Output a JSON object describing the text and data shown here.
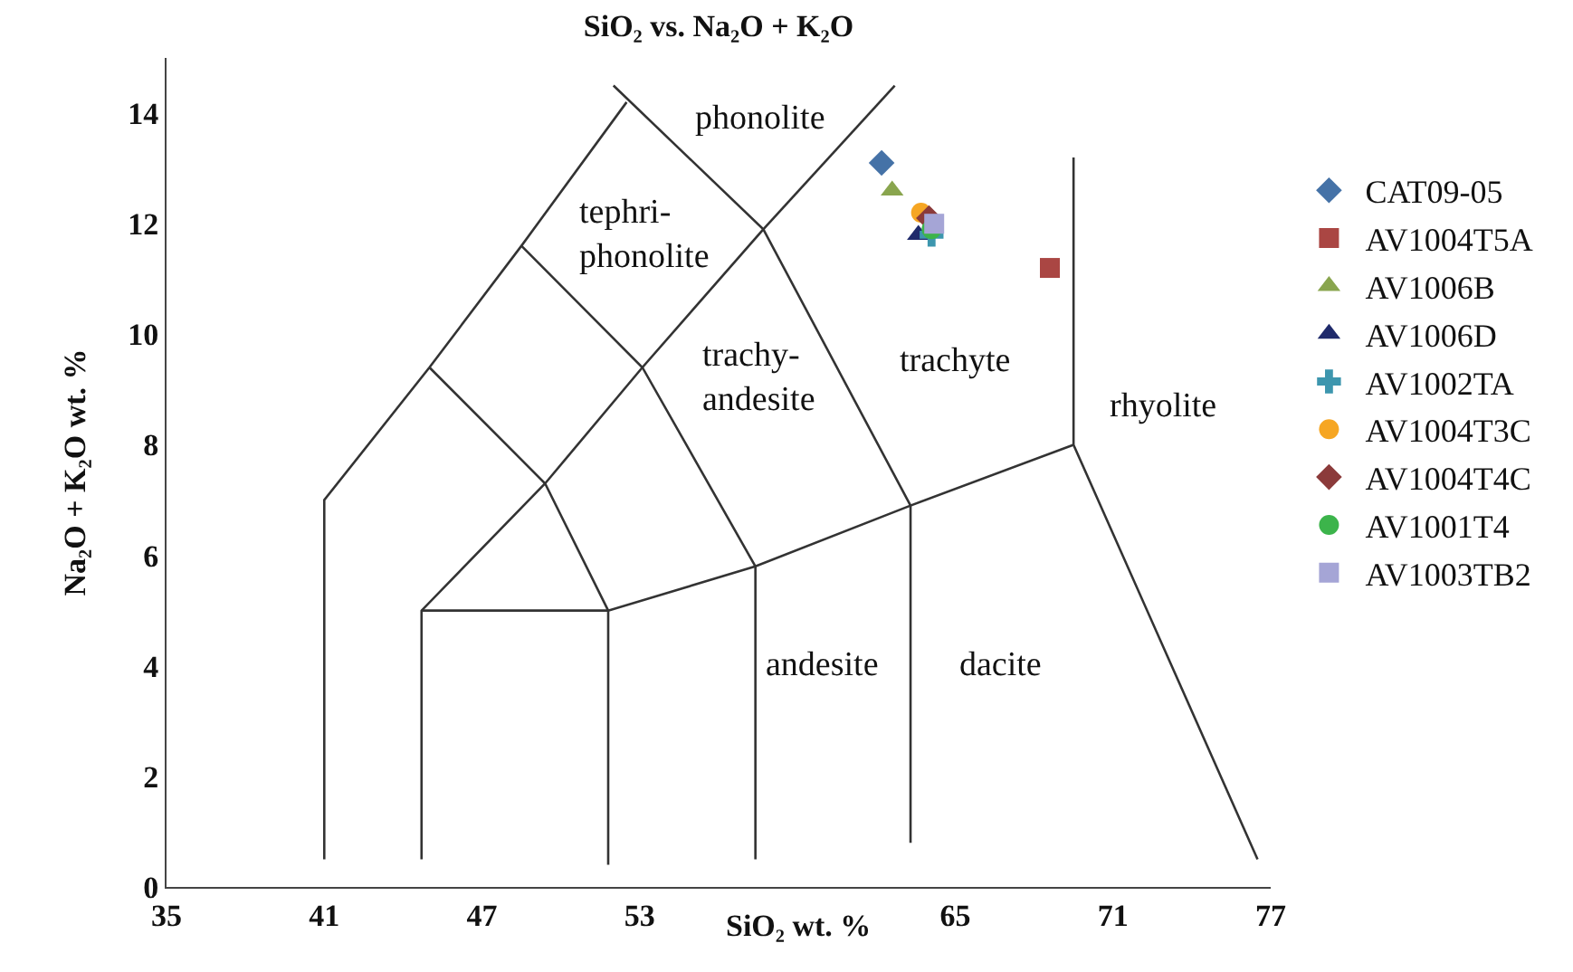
{
  "chart_data": {
    "type": "scatter",
    "title": "SiO₂ vs. Na₂O + K₂O",
    "xlabel": "SiO₂ wt. %",
    "ylabel": "Na₂O + K₂O wt. %",
    "xlim": [
      35,
      77
    ],
    "xticks": [
      35,
      41,
      47,
      53,
      65,
      71,
      77
    ],
    "ylim": [
      0,
      15
    ],
    "yticks": [
      0,
      2,
      4,
      6,
      8,
      10,
      12,
      14
    ],
    "grid": false,
    "legend": "right",
    "series": [
      {
        "type": "line",
        "color": "#333333",
        "marker": "none",
        "x": [
          41,
          41,
          45,
          48.5,
          52.5,
          null,
          52,
          57.7,
          63.3,
          63.3,
          null,
          57.7,
          62.7,
          null,
          48.5,
          53.1,
          57.4,
          57.4,
          null,
          45,
          49.4,
          51.8,
          51.8,
          null,
          44.7,
          44.7,
          49.4,
          53.1,
          57.7,
          null,
          44.7,
          51.8,
          57.4,
          63.3,
          69.5,
          null,
          69.5,
          69.5,
          76.5
        ],
        "values": [
          0.5,
          7,
          9.4,
          11.6,
          14.2,
          null,
          14.5,
          11.9,
          6.9,
          0.8,
          null,
          11.9,
          14.5,
          null,
          11.6,
          9.4,
          5.8,
          0.5,
          null,
          9.4,
          7.3,
          5,
          0.4,
          null,
          0.5,
          5,
          7.3,
          9.4,
          11.9,
          null,
          5,
          5,
          5.8,
          6.9,
          8,
          null,
          13.2,
          8,
          0.5
        ]
      },
      {
        "name": "CAT09-05",
        "color": "#4572a7",
        "marker": "diamond",
        "x": [
          62.2
        ],
        "values": [
          13.1
        ]
      },
      {
        "name": "AV1004T5A",
        "color": "#aa4643",
        "marker": "square",
        "x": [
          68.6
        ],
        "values": [
          11.2
        ]
      },
      {
        "name": "AV1006B",
        "color": "#89a54e",
        "marker": "triangle",
        "x": [
          62.6
        ],
        "values": [
          12.6
        ]
      },
      {
        "name": "AV1006D",
        "color": "#1f2a6b",
        "marker": "triangle",
        "x": [
          63.6
        ],
        "values": [
          11.8
        ]
      },
      {
        "name": "AV1002TA",
        "color": "#3d96ae",
        "marker": "cross",
        "x": [
          64.1
        ],
        "values": [
          11.8
        ]
      },
      {
        "name": "AV1004T3C",
        "color": "#f6a623",
        "marker": "circle",
        "x": [
          63.7
        ],
        "values": [
          12.2
        ]
      },
      {
        "name": "AV1004T4C",
        "color": "#8b3a3a",
        "marker": "diamond",
        "x": [
          64.0
        ],
        "values": [
          12.1
        ]
      },
      {
        "name": "AV1001T4",
        "color": "#3cb44b",
        "marker": "circle",
        "x": [
          64.1
        ],
        "values": [
          11.9
        ]
      },
      {
        "name": "AV1003TB2",
        "color": "#a5a5d6",
        "marker": "square",
        "x": [
          64.2
        ],
        "values": [
          12.0
        ]
      }
    ],
    "annotations": [
      "phonolite",
      "tephri-\nphonolite",
      "trachy-\nandesite",
      "trachyte",
      "rhyolite",
      "andesite",
      "dacite"
    ]
  }
}
